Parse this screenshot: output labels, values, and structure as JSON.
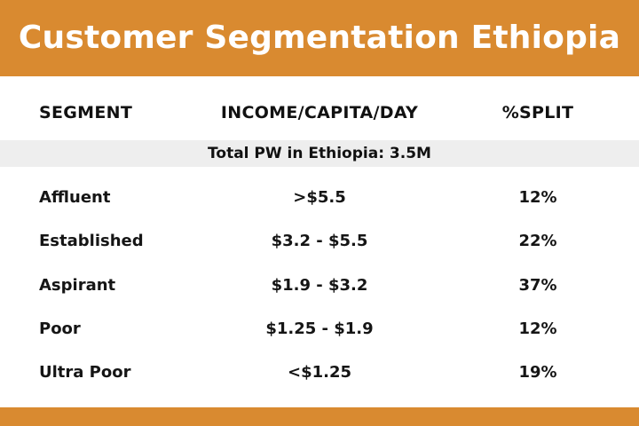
{
  "title": "Customer Segmentation Ethiopia",
  "colors": {
    "accent": "#d98a30",
    "band": "#eeeeee",
    "text": "#111111"
  },
  "table": {
    "headers": {
      "segment": "SEGMENT",
      "income": "INCOME/CAPITA/DAY",
      "split": "%SPLIT"
    },
    "total_note": "Total PW in Ethiopia: 3.5M",
    "rows": [
      {
        "segment": "Affluent",
        "income": ">$5.5",
        "split": "12%"
      },
      {
        "segment": "Established",
        "income": "$3.2 - $5.5",
        "split": "22%"
      },
      {
        "segment": "Aspirant",
        "income": "$1.9 - $3.2",
        "split": "37%"
      },
      {
        "segment": "Poor",
        "income": "$1.25 - $1.9",
        "split": "12%"
      },
      {
        "segment": "Ultra Poor",
        "income": "<$1.25",
        "split": "19%"
      }
    ]
  }
}
